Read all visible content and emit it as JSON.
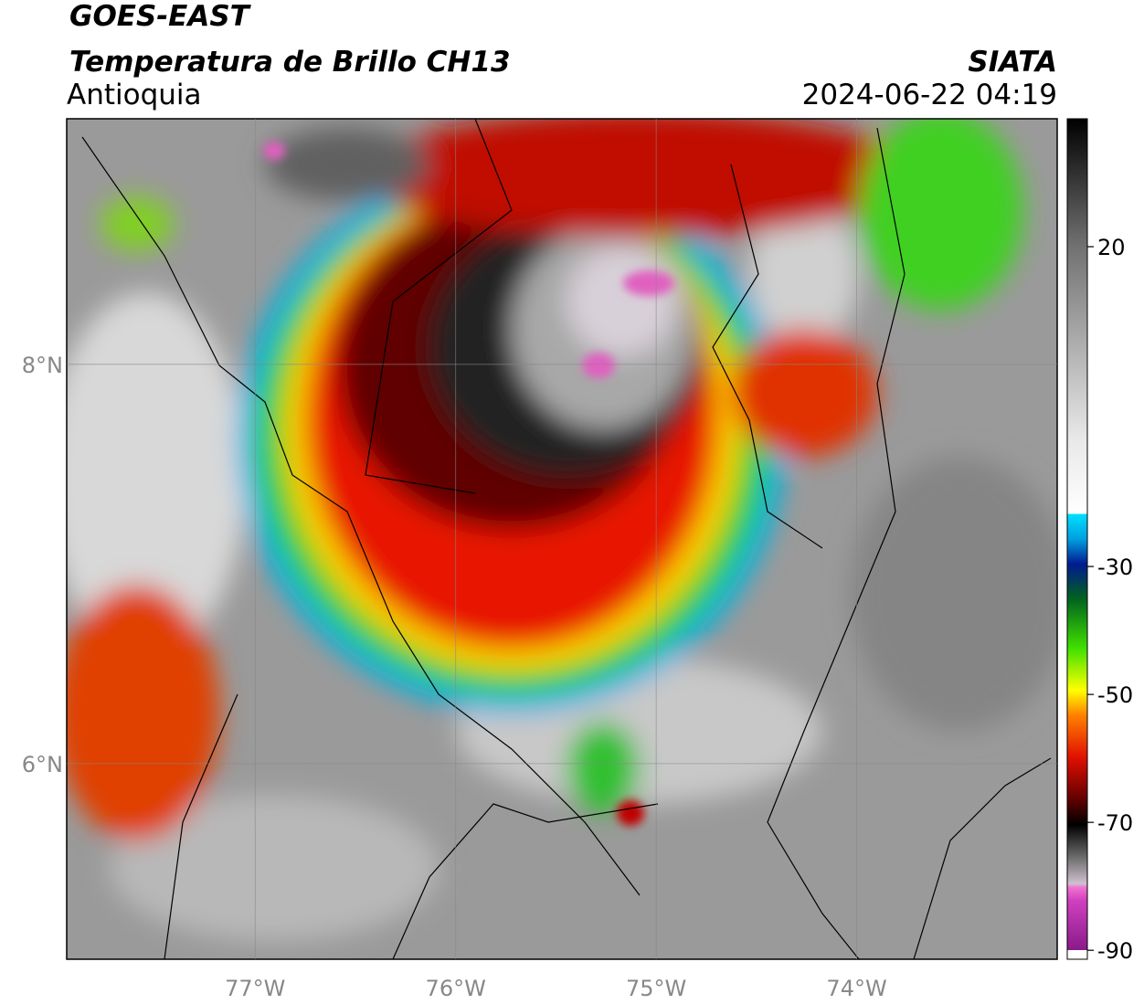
{
  "header": {
    "satellite": "GOES-EAST",
    "product": "Temperatura de Brillo CH13",
    "region": "Antioquia",
    "source": "SIATA",
    "datetime": "2024-06-22 04:19"
  },
  "map": {
    "lonlim": [
      -77.94,
      -73.0
    ],
    "latlim": [
      5.02,
      9.23
    ],
    "lon_ticks": [
      {
        "value": -77,
        "label": "77°W"
      },
      {
        "value": -76,
        "label": "76°W"
      },
      {
        "value": -75,
        "label": "75°W"
      },
      {
        "value": -74,
        "label": "74°W"
      }
    ],
    "lat_ticks": [
      {
        "value": 8,
        "label": "8°N"
      },
      {
        "value": 6,
        "label": "6°N"
      }
    ]
  },
  "colorbar": {
    "lim": [
      -91.4,
      40
    ],
    "ticks": [
      -90,
      -70,
      -50,
      -30,
      20
    ]
  }
}
